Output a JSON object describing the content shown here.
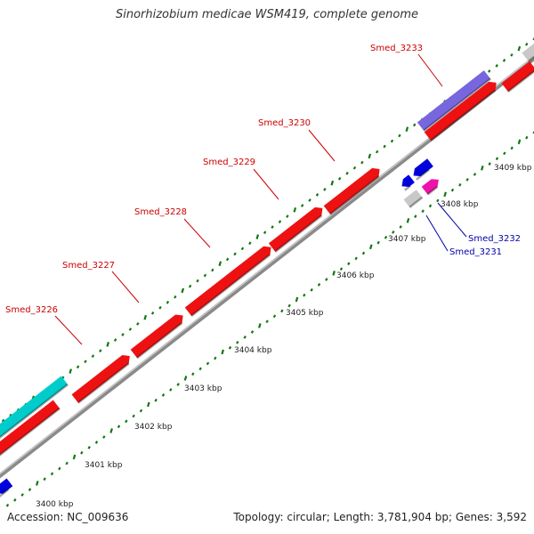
{
  "title": "Sinorhizobium medicae WSM419, complete genome",
  "footer": {
    "accession": "Accession: NC_009636",
    "summary": "Topology: circular; Length: 3,781,904 bp; Genes: 3,592"
  },
  "colors": {
    "cds": "#ee1111",
    "cds_label": "#cc0000",
    "cds_blue": "#0000dd",
    "blue_label": "#0000aa",
    "pink": "#ee11aa",
    "grey_feature": "#c8c8c8",
    "cyan": "#00cccc",
    "purple": "#7766dd",
    "backbone": "#999999",
    "tick": "#117711"
  },
  "scale_labels": [
    "3400 kbp",
    "3401 kbp",
    "3402 kbp",
    "3403 kbp",
    "3404 kbp",
    "3405 kbp",
    "3406 kbp",
    "3407 kbp",
    "3408 kbp",
    "3409 kbp"
  ],
  "gene_labels": [
    {
      "id": "smed-3226",
      "text": "Smed_3226",
      "strand": "forward"
    },
    {
      "id": "smed-3227",
      "text": "Smed_3227",
      "strand": "forward"
    },
    {
      "id": "smed-3228",
      "text": "Smed_3228",
      "strand": "forward"
    },
    {
      "id": "smed-3229",
      "text": "Smed_3229",
      "strand": "forward"
    },
    {
      "id": "smed-3230",
      "text": "Smed_3230",
      "strand": "forward"
    },
    {
      "id": "smed-3233",
      "text": "Smed_3233",
      "strand": "forward"
    },
    {
      "id": "smed-3232",
      "text": "Smed_3232",
      "strand": "reverse"
    },
    {
      "id": "smed-3231",
      "text": "Smed_3231",
      "strand": "reverse"
    }
  ]
}
